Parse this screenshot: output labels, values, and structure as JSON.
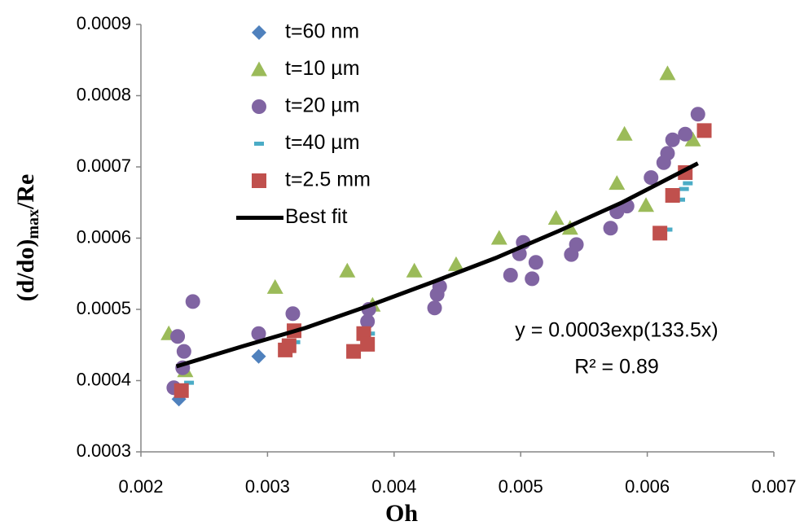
{
  "chart_data": {
    "type": "scatter",
    "xlabel": "Oh",
    "ylabel_parts": [
      "(d/do)",
      "max",
      "/Re"
    ],
    "annotations": [
      "y = 0.0003exp(133.5x)",
      "R² = 0.89"
    ],
    "xlim": [
      0.002,
      0.007
    ],
    "xticks": [
      0.002,
      0.003,
      0.004,
      0.005,
      0.006,
      0.007
    ],
    "ylim": [
      0.0003,
      0.0009
    ],
    "yticks": [
      0.0003,
      0.0004,
      0.0005,
      0.0006,
      0.0007,
      0.0008,
      0.0009
    ],
    "grid": false,
    "legend": "upper-left",
    "series": [
      {
        "name": "t=60 nm",
        "color": "#4f81bd",
        "marker": "diamond",
        "x": [
          0.0023,
          0.00293
        ],
        "values": [
          0.000374,
          0.000434
        ]
      },
      {
        "name": "t=10 µm",
        "color": "#9bbb59",
        "marker": "triangle",
        "x": [
          0.00222,
          0.00235,
          0.00306,
          0.00363,
          0.00383,
          0.00416,
          0.00449,
          0.00483,
          0.00528,
          0.00539,
          0.00576,
          0.00582,
          0.00599,
          0.00616,
          0.00636
        ],
        "values": [
          0.000466,
          0.000414,
          0.000531,
          0.000554,
          0.000506,
          0.000554,
          0.000563,
          0.0006,
          0.000628,
          0.000614,
          0.000677,
          0.000746,
          0.000646,
          0.000831,
          0.000738
        ]
      },
      {
        "name": "t=20 µm",
        "color": "#8064a2",
        "marker": "circle",
        "x": [
          0.00226,
          0.00229,
          0.00234,
          0.00241,
          0.00233,
          0.00293,
          0.0032,
          0.00379,
          0.0038,
          0.00432,
          0.00434,
          0.00436,
          0.00492,
          0.00499,
          0.00502,
          0.00509,
          0.00512,
          0.0054,
          0.00544,
          0.00571,
          0.00576,
          0.00584,
          0.00603,
          0.00613,
          0.00616,
          0.0062,
          0.0063,
          0.0064
        ],
        "values": [
          0.00039,
          0.000462,
          0.000441,
          0.000511,
          0.000418,
          0.000466,
          0.000494,
          0.000483,
          0.0005,
          0.000502,
          0.000521,
          0.000532,
          0.000548,
          0.000578,
          0.000594,
          0.000543,
          0.000566,
          0.000577,
          0.000591,
          0.000614,
          0.000637,
          0.000645,
          0.000685,
          0.000706,
          0.000719,
          0.000738,
          0.000746,
          0.000774
        ]
      },
      {
        "name": "t=40 µm",
        "color": "#4bacc6",
        "marker": "dash",
        "x": [
          0.00238,
          0.00322,
          0.00381,
          0.00616,
          0.00626,
          0.00629,
          0.00632
        ],
        "values": [
          0.000397,
          0.000454,
          0.000466,
          0.000612,
          0.000654,
          0.000669,
          0.000677
        ]
      },
      {
        "name": "t=2.5 mm",
        "color": "#c0504d",
        "marker": "square",
        "x": [
          0.00232,
          0.00314,
          0.00317,
          0.00321,
          0.00368,
          0.00376,
          0.00379,
          0.0061,
          0.0062,
          0.0063,
          0.00645
        ],
        "values": [
          0.000386,
          0.000443,
          0.000449,
          0.00047,
          0.000441,
          0.000466,
          0.000451,
          0.000607,
          0.00066,
          0.000692,
          0.000751
        ]
      },
      {
        "name": "Best fit",
        "color": "#000000",
        "marker": "line",
        "x": [
          0.00228,
          0.0028,
          0.0033,
          0.0038,
          0.0043,
          0.0048,
          0.0053,
          0.0058,
          0.0064
        ],
        "values": [
          0.00042,
          0.000448,
          0.000474,
          0.000505,
          0.000538,
          0.000572,
          0.00061,
          0.00065,
          0.000705
        ]
      }
    ]
  }
}
